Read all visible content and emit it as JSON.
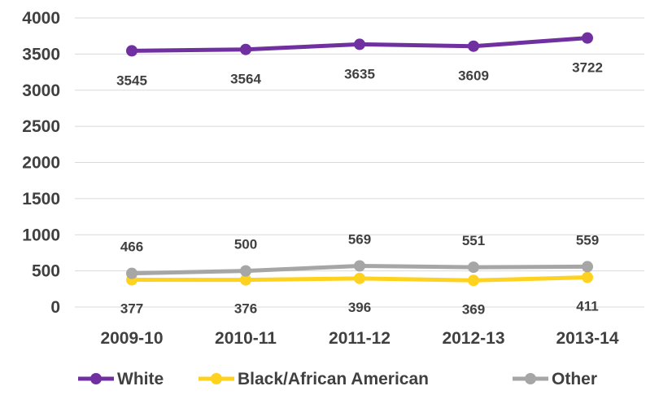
{
  "chart_data": {
    "type": "line",
    "categories": [
      "2009-10",
      "2010-11",
      "2011-12",
      "2012-13",
      "2013-14"
    ],
    "series": [
      {
        "name": "White",
        "color": "#7030a0",
        "values": [
          3545,
          3564,
          3635,
          3609,
          3722
        ]
      },
      {
        "name": "Black/African American",
        "color": "#ffd21f",
        "values": [
          377,
          376,
          396,
          369,
          411
        ]
      },
      {
        "name": "Other",
        "color": "#a6a6a6",
        "values": [
          466,
          500,
          569,
          551,
          559
        ]
      }
    ],
    "ylim": [
      0,
      4000
    ],
    "yticks": [
      0,
      500,
      1000,
      1500,
      2000,
      2500,
      3000,
      3500,
      4000
    ],
    "grid": true,
    "legend": "bottom"
  }
}
